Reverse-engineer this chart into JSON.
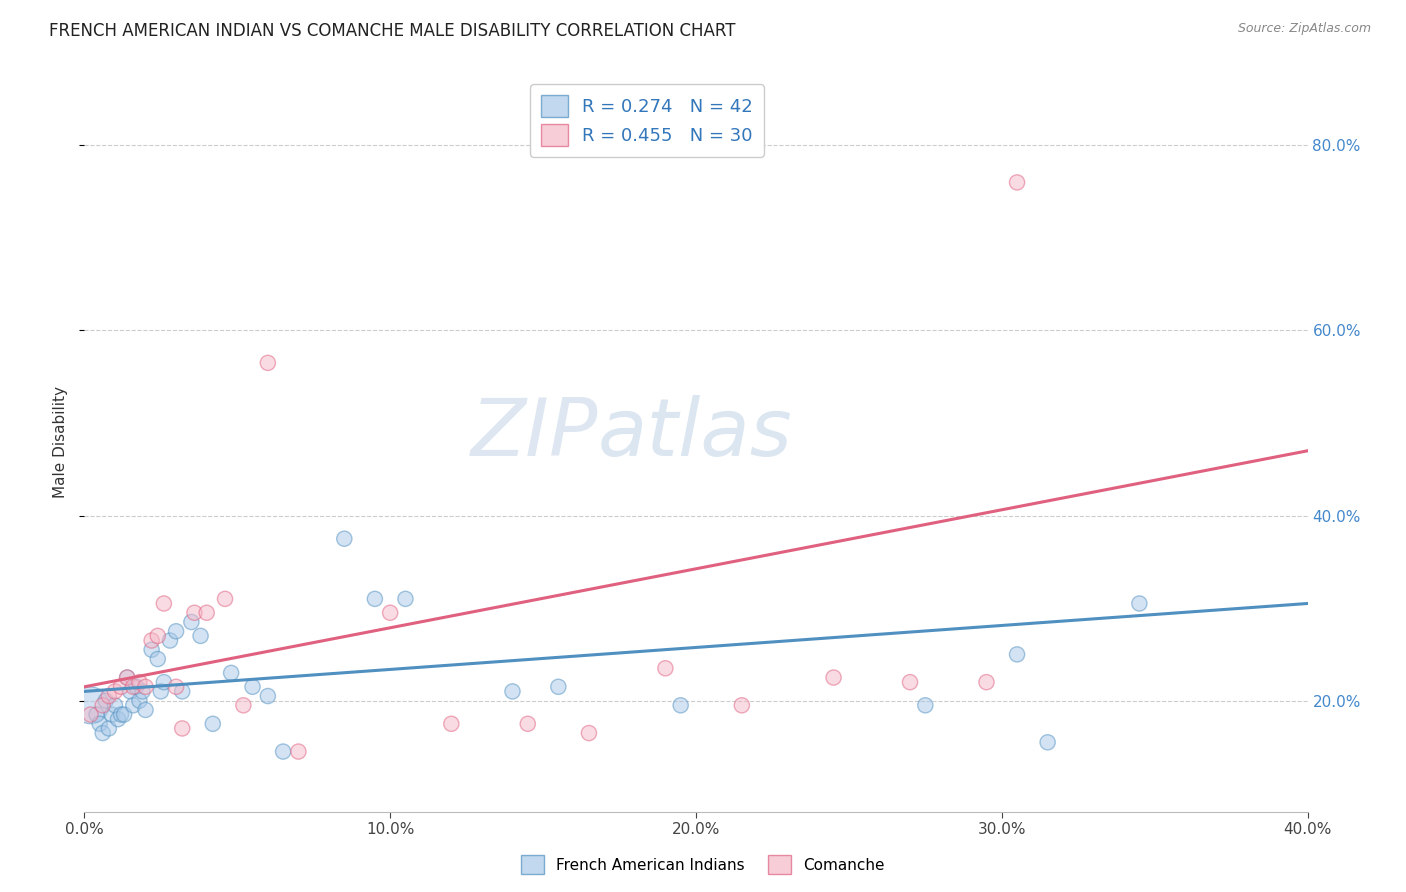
{
  "title": "FRENCH AMERICAN INDIAN VS COMANCHE MALE DISABILITY CORRELATION CHART",
  "source": "Source: ZipAtlas.com",
  "ylabel": "Male Disability",
  "xlim": [
    0.0,
    0.4
  ],
  "ylim": [
    0.08,
    0.88
  ],
  "ytick_labels": [
    "20.0%",
    "40.0%",
    "60.0%",
    "80.0%"
  ],
  "ytick_values": [
    0.2,
    0.4,
    0.6,
    0.8
  ],
  "xtick_labels": [
    "0.0%",
    "10.0%",
    "20.0%",
    "30.0%",
    "40.0%"
  ],
  "xtick_values": [
    0.0,
    0.1,
    0.2,
    0.3,
    0.4
  ],
  "blue_R": 0.274,
  "blue_N": 42,
  "pink_R": 0.455,
  "pink_N": 30,
  "blue_fill": "#a8c8e8",
  "pink_fill": "#f4b8c8",
  "blue_edge": "#5090c0",
  "pink_edge": "#e06080",
  "watermark_zip": "ZIP",
  "watermark_atlas": "atlas",
  "blue_points_x": [
    0.002,
    0.004,
    0.005,
    0.006,
    0.007,
    0.008,
    0.009,
    0.01,
    0.011,
    0.012,
    0.013,
    0.014,
    0.015,
    0.016,
    0.017,
    0.018,
    0.019,
    0.02,
    0.022,
    0.024,
    0.025,
    0.026,
    0.028,
    0.03,
    0.032,
    0.035,
    0.038,
    0.042,
    0.048,
    0.055,
    0.06,
    0.065,
    0.085,
    0.095,
    0.105,
    0.14,
    0.155,
    0.195,
    0.275,
    0.305,
    0.315,
    0.345
  ],
  "blue_points_y": [
    0.195,
    0.185,
    0.175,
    0.165,
    0.2,
    0.17,
    0.185,
    0.195,
    0.18,
    0.185,
    0.185,
    0.225,
    0.21,
    0.195,
    0.215,
    0.2,
    0.21,
    0.19,
    0.255,
    0.245,
    0.21,
    0.22,
    0.265,
    0.275,
    0.21,
    0.285,
    0.27,
    0.175,
    0.23,
    0.215,
    0.205,
    0.145,
    0.375,
    0.31,
    0.31,
    0.21,
    0.215,
    0.195,
    0.195,
    0.25,
    0.155,
    0.305
  ],
  "blue_sizes": [
    700,
    120,
    120,
    120,
    120,
    120,
    120,
    120,
    120,
    120,
    120,
    120,
    120,
    120,
    120,
    120,
    120,
    120,
    120,
    120,
    120,
    120,
    120,
    120,
    120,
    120,
    120,
    120,
    120,
    120,
    120,
    120,
    120,
    120,
    120,
    120,
    120,
    120,
    120,
    120,
    120,
    120
  ],
  "pink_points_x": [
    0.002,
    0.006,
    0.008,
    0.01,
    0.012,
    0.014,
    0.016,
    0.018,
    0.02,
    0.022,
    0.024,
    0.026,
    0.03,
    0.032,
    0.036,
    0.04,
    0.046,
    0.052,
    0.06,
    0.07,
    0.1,
    0.12,
    0.145,
    0.165,
    0.19,
    0.215,
    0.245,
    0.27,
    0.295,
    0.305
  ],
  "pink_points_y": [
    0.185,
    0.195,
    0.205,
    0.21,
    0.215,
    0.225,
    0.215,
    0.22,
    0.215,
    0.265,
    0.27,
    0.305,
    0.215,
    0.17,
    0.295,
    0.295,
    0.31,
    0.195,
    0.565,
    0.145,
    0.295,
    0.175,
    0.175,
    0.165,
    0.235,
    0.195,
    0.225,
    0.22,
    0.22,
    0.76
  ],
  "pink_sizes": [
    120,
    120,
    120,
    120,
    120,
    120,
    120,
    120,
    120,
    120,
    120,
    120,
    120,
    120,
    120,
    120,
    120,
    120,
    120,
    120,
    120,
    120,
    120,
    120,
    120,
    120,
    120,
    120,
    120,
    120
  ],
  "blue_trend_x": [
    0.0,
    0.4
  ],
  "blue_trend_y": [
    0.21,
    0.305
  ],
  "pink_trend_x": [
    0.0,
    0.4
  ],
  "pink_trend_y": [
    0.215,
    0.47
  ]
}
